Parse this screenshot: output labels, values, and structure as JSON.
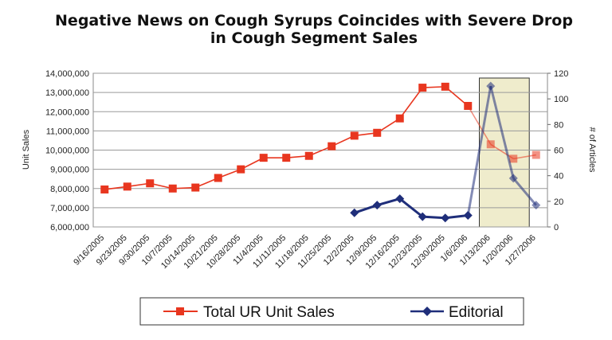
{
  "chart_data": {
    "type": "line",
    "title_line1": "Negative News on Cough Syrups Coincides with Severe Drop",
    "title_line2": "in Cough Segment Sales",
    "ylabel": "Unit Sales",
    "y2label": "# of Articles",
    "ylim": [
      6000000,
      14000000
    ],
    "y2lim": [
      0,
      120
    ],
    "yticks": [
      "6,000,000",
      "7,000,000",
      "8,000,000",
      "9,000,000",
      "10,000,000",
      "11,000,000",
      "12,000,000",
      "13,000,000",
      "14,000,000"
    ],
    "y2ticks": [
      "0",
      "20",
      "40",
      "60",
      "80",
      "100",
      "120"
    ],
    "grid": true,
    "legend_position": "bottom",
    "categories": [
      "9/16/2005",
      "9/23/2005",
      "9/30/2005",
      "10/7/2005",
      "10/14/2005",
      "10/21/2005",
      "10/28/2005",
      "11/4/2005",
      "11/11/2005",
      "11/18/2005",
      "11/25/2005",
      "12/2/2005",
      "12/9/2005",
      "12/16/2005",
      "12/23/2005",
      "12/30/2005",
      "1/6/2006",
      "1/13/2006",
      "1/20/2006",
      "1/27/2006"
    ],
    "series": [
      {
        "name": "Total UR Unit Sales",
        "axis": "left",
        "color": "#e8361f",
        "marker": "square",
        "values": [
          7950000,
          8100000,
          8270000,
          8000000,
          8050000,
          8550000,
          9000000,
          9600000,
          9600000,
          9700000,
          10200000,
          10750000,
          10900000,
          11650000,
          13250000,
          13300000,
          12300000,
          10300000,
          9550000,
          9750000
        ]
      },
      {
        "name": "Editorial",
        "axis": "right",
        "color": "#1f2e7a",
        "marker": "diamond",
        "values": [
          null,
          null,
          null,
          null,
          null,
          null,
          null,
          null,
          null,
          null,
          null,
          11,
          17,
          22,
          8,
          7,
          9,
          110,
          38,
          17
        ]
      }
    ],
    "highlight": {
      "from": "1/13/2006",
      "to": "1/27/2006",
      "color": "#efeccc"
    }
  }
}
